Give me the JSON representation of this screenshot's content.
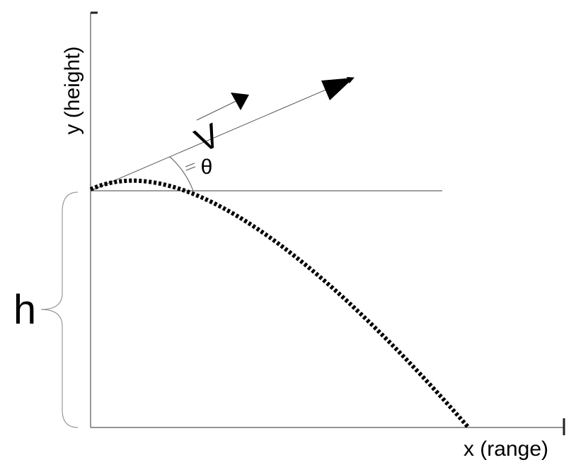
{
  "labels": {
    "y_axis": "y (height)",
    "x_axis": "x (range)",
    "velocity": "V",
    "angle": "θ",
    "height": "h"
  },
  "colors": {
    "axis": "#555555",
    "trajectory": "#000000",
    "brace": "#999999"
  }
}
